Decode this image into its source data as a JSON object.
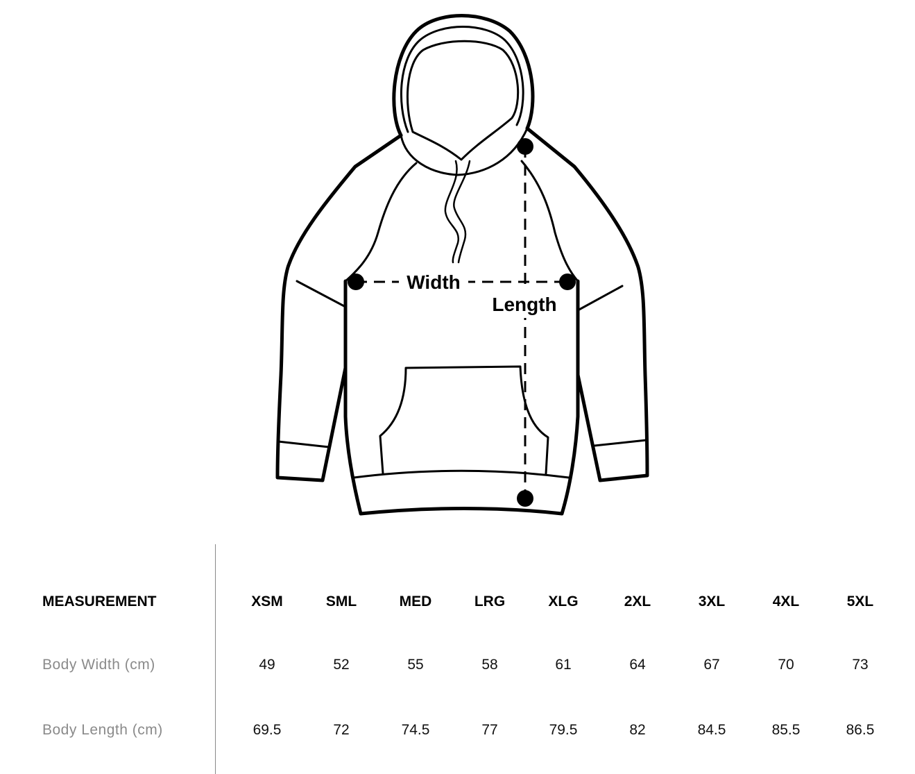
{
  "diagram": {
    "width_label": "Width",
    "length_label": "Length"
  },
  "table": {
    "header_label": "MEASUREMENT",
    "sizes": [
      "XSM",
      "SML",
      "MED",
      "LRG",
      "XLG",
      "2XL",
      "3XL",
      "4XL",
      "5XL"
    ],
    "rows": [
      {
        "label": "Body Width (cm)",
        "values": [
          "49",
          "52",
          "55",
          "58",
          "61",
          "64",
          "67",
          "70",
          "73"
        ]
      },
      {
        "label": "Body Length (cm)",
        "values": [
          "69.5",
          "72",
          "74.5",
          "77",
          "79.5",
          "82",
          "84.5",
          "85.5",
          "86.5"
        ]
      }
    ]
  }
}
